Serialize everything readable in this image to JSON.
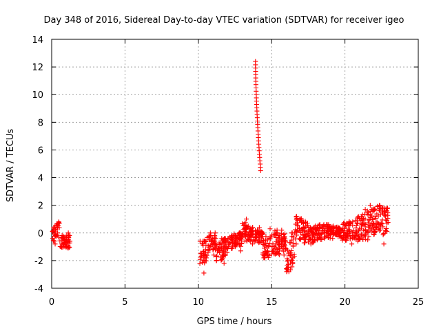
{
  "chart_data": {
    "type": "scatter",
    "title": "Day 348 of 2016, Sidereal Day-to-day VTEC variation (SDTVAR) for receiver igeo",
    "xlabel": "GPS time / hours",
    "ylabel": "SDTVAR / TECUs",
    "xlim": [
      0,
      25
    ],
    "ylim": [
      -4,
      14
    ],
    "xticks": [
      0,
      5,
      10,
      15,
      20,
      25
    ],
    "yticks": [
      -4,
      -2,
      0,
      2,
      4,
      6,
      8,
      10,
      12,
      14
    ],
    "grid": true,
    "marker": "+",
    "marker_color": "#ff0000",
    "series": [
      {
        "name": "SDTVAR",
        "segments": [
          {
            "x0": 0.05,
            "x1": 0.55,
            "ymin": -0.8,
            "ymax": 0.8,
            "y0": 0.0,
            "y1": 0.1
          },
          {
            "x0": 0.55,
            "x1": 1.25,
            "ymin": -1.1,
            "ymax": 0.0,
            "y0": -0.6,
            "y1": -0.6
          },
          {
            "x0": 10.1,
            "x1": 10.6,
            "ymin": -2.9,
            "ymax": -0.6,
            "y0": -1.5,
            "y1": -1.2
          },
          {
            "x0": 10.6,
            "x1": 11.2,
            "ymin": -1.6,
            "ymax": 0.0,
            "y0": -1.0,
            "y1": -0.6
          },
          {
            "x0": 11.2,
            "x1": 12.1,
            "ymin": -2.2,
            "ymax": -0.4,
            "y0": -1.6,
            "y1": -0.8
          },
          {
            "x0": 12.1,
            "x1": 13.0,
            "ymin": -1.3,
            "ymax": 0.0,
            "y0": -0.7,
            "y1": -0.4
          },
          {
            "x0": 13.0,
            "x1": 13.6,
            "ymin": -0.6,
            "ymax": 1.0,
            "y0": 0.3,
            "y1": -0.2
          },
          {
            "x0": 13.6,
            "x1": 14.4,
            "ymin": -0.8,
            "ymax": 0.4,
            "y0": 0.0,
            "y1": -0.4
          },
          {
            "x0": 14.4,
            "x1": 15.4,
            "ymin": -1.8,
            "ymax": 0.3,
            "y0": -1.2,
            "y1": -0.6
          },
          {
            "x0": 15.4,
            "x1": 16.0,
            "ymin": -1.6,
            "ymax": 0.2,
            "y0": -0.9,
            "y1": -0.6
          },
          {
            "x0": 16.0,
            "x1": 16.6,
            "ymin": -2.8,
            "ymax": 0.0,
            "y0": -2.5,
            "y1": -0.6
          },
          {
            "x0": 16.6,
            "x1": 17.5,
            "ymin": -0.8,
            "ymax": 1.2,
            "y0": 0.4,
            "y1": 0.0
          },
          {
            "x0": 17.5,
            "x1": 19.0,
            "ymin": -0.8,
            "ymax": 0.6,
            "y0": -0.2,
            "y1": 0.2
          },
          {
            "x0": 19.0,
            "x1": 19.8,
            "ymin": -0.4,
            "ymax": 0.5,
            "y0": 0.2,
            "y1": 0.0
          },
          {
            "x0": 19.8,
            "x1": 20.6,
            "ymin": -0.8,
            "ymax": 0.8,
            "y0": 0.0,
            "y1": 0.3
          },
          {
            "x0": 20.6,
            "x1": 21.4,
            "ymin": -0.6,
            "ymax": 1.7,
            "y0": 0.2,
            "y1": 0.4
          },
          {
            "x0": 21.4,
            "x1": 22.4,
            "ymin": -0.5,
            "ymax": 2.0,
            "y0": 0.6,
            "y1": 1.2
          },
          {
            "x0": 22.4,
            "x1": 22.95,
            "ymin": -0.8,
            "ymax": 1.8,
            "y0": 0.9,
            "y1": 1.0
          }
        ],
        "spike": {
          "x0": 13.9,
          "x1": 14.25,
          "y0": 12.4,
          "y1": 4.5
        }
      }
    ]
  }
}
